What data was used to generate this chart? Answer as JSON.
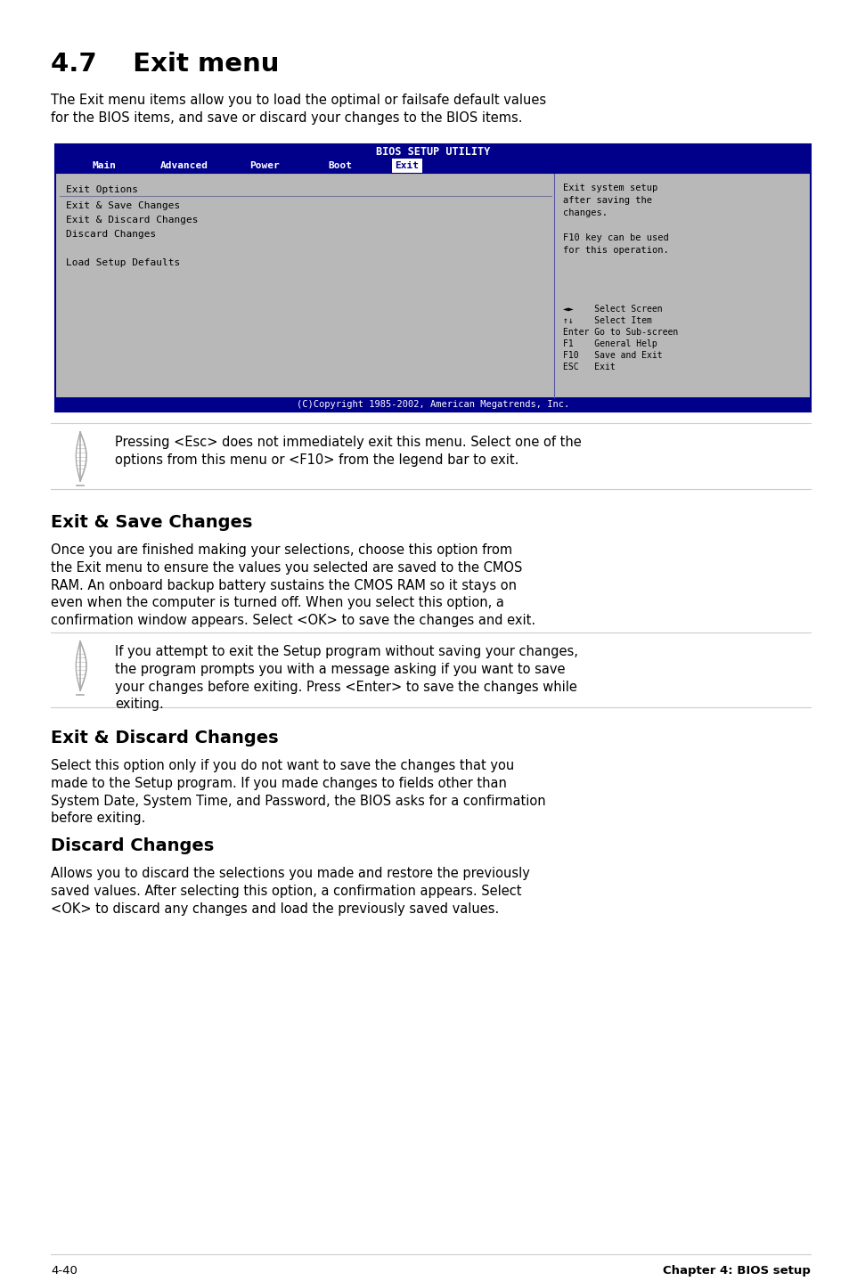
{
  "title": "4.7    Exit menu",
  "intro_text": "The Exit menu items allow you to load the optimal or failsafe default values\nfor the BIOS items, and save or discard your changes to the BIOS items.",
  "bios_title": "BIOS SETUP UTILITY",
  "bios_menu": [
    "Main",
    "Advanced",
    "Power",
    "Boot",
    "Exit"
  ],
  "bios_active_menu": "Exit",
  "bios_left_header": "Exit Options",
  "bios_left_items": [
    "Exit & Save Changes",
    "Exit & Discard Changes",
    "Discard Changes",
    "",
    "Load Setup Defaults"
  ],
  "bios_right_text": "Exit system setup\nafter saving the\nchanges.\n\nF10 key can be used\nfor this operation.",
  "bios_legend_line1": "◄►    Select Screen",
  "bios_legend_line2": "↑↓    Select Item",
  "bios_legend_line3": "Enter Go to Sub-screen",
  "bios_legend_line4": "F1    General Help",
  "bios_legend_line5": "F10   Save and Exit",
  "bios_legend_line6": "ESC   Exit",
  "bios_copyright": "(C)Copyright 1985-2002, American Megatrends, Inc.",
  "note1_text": "Pressing <Esc> does not immediately exit this menu. Select one of the\noptions from this menu or <F10> from the legend bar to exit.",
  "section2_title": "Exit & Save Changes",
  "section2_text": "Once you are finished making your selections, choose this option from\nthe Exit menu to ensure the values you selected are saved to the CMOS\nRAM. An onboard backup battery sustains the CMOS RAM so it stays on\neven when the computer is turned off. When you select this option, a\nconfirmation window appears. Select <OK> to save the changes and exit.",
  "note2_text": "If you attempt to exit the Setup program without saving your changes,\nthe program prompts you with a message asking if you want to save\nyour changes before exiting. Press <Enter> to save the changes while\nexiting.",
  "section3_title": "Exit & Discard Changes",
  "section3_text": "Select this option only if you do not want to save the changes that you\nmade to the Setup program. If you made changes to fields other than\nSystem Date, System Time, and Password, the BIOS asks for a confirmation\nbefore exiting.",
  "section4_title": "Discard Changes",
  "section4_text": "Allows you to discard the selections you made and restore the previously\nsaved values. After selecting this option, a confirmation appears. Select\n<OK> to discard any changes and load the previously saved values.",
  "footer_left": "4-40",
  "footer_right": "Chapter 4: BIOS setup",
  "bg_color": "#ffffff",
  "text_color": "#000000",
  "bios_bg": "#b8b8b8",
  "bios_header_bg": "#00008b",
  "bios_header_text": "#ffffff",
  "bios_border_color": "#00008b",
  "feather_color": "#aaaaaa",
  "line_color": "#cccccc"
}
